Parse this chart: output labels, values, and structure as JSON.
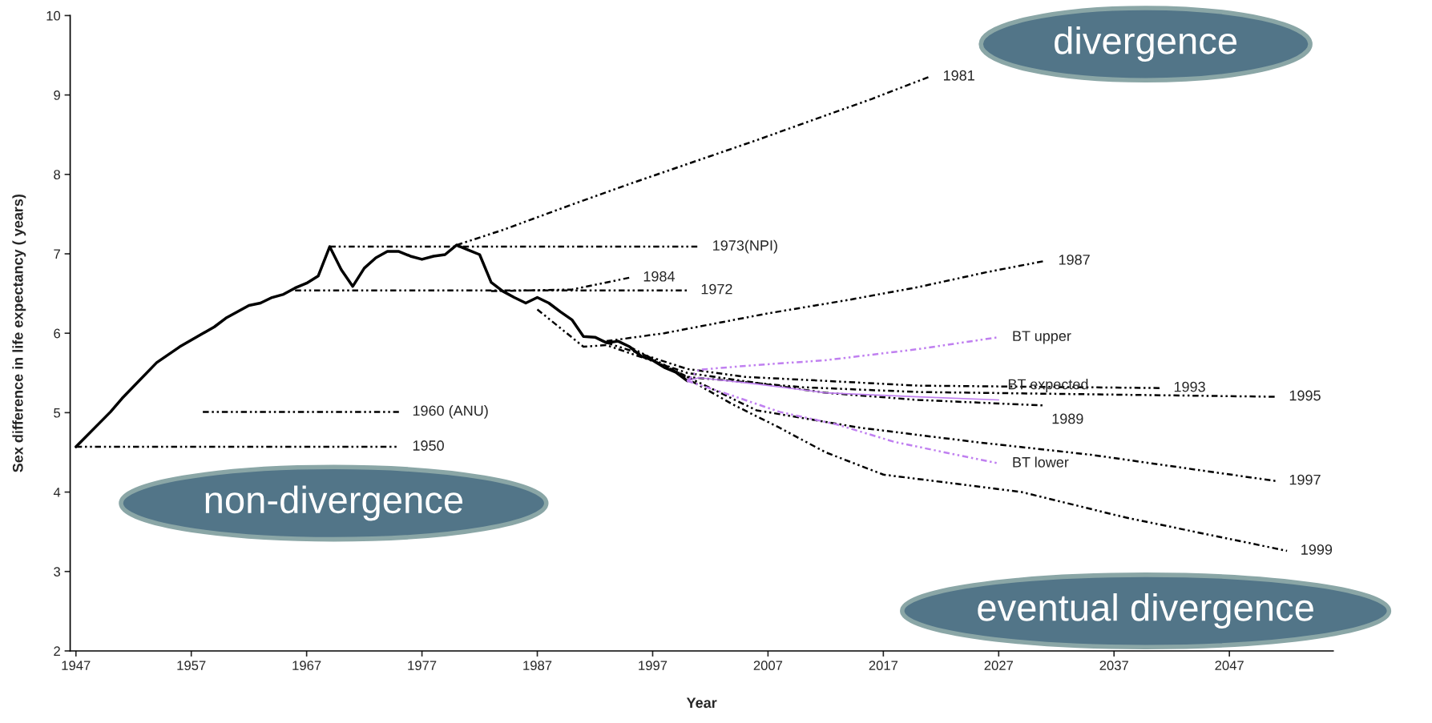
{
  "chart_data": {
    "type": "line",
    "xlabel": "Year",
    "ylabel": "Sex difference in life expectancy ( years)",
    "xlim": [
      1946.5,
      2056
    ],
    "xticks": [
      1947,
      1957,
      1967,
      1977,
      1987,
      1997,
      2007,
      2017,
      2027,
      2037,
      2047
    ],
    "ylim": [
      2,
      10
    ],
    "yticks": [
      2,
      3,
      4,
      5,
      6,
      7,
      8,
      9,
      10
    ],
    "grid": false,
    "legend": false,
    "marker": "none",
    "series": [
      {
        "color": "#000000",
        "line_style": "solid",
        "x": [
          1947,
          1950,
          1951,
          1954,
          1956,
          1959,
          1960,
          1962,
          1963,
          1964,
          1965,
          1966,
          1967,
          1968,
          1969,
          1970,
          1971,
          1972,
          1973,
          1974,
          1975,
          1976,
          1977,
          1978,
          1979,
          1980,
          1981,
          1982,
          1983,
          1984,
          1985,
          1986,
          1987,
          1988,
          1989,
          1990,
          1991,
          1992,
          1993,
          1994,
          1995,
          1996,
          1997,
          1998,
          1999,
          2000
        ],
        "values": [
          4.57,
          5.01,
          5.18,
          5.63,
          5.83,
          6.08,
          6.19,
          6.35,
          6.38,
          6.45,
          6.49,
          6.57,
          6.63,
          6.72,
          7.09,
          6.8,
          6.59,
          6.82,
          6.95,
          7.03,
          7.03,
          6.97,
          6.93,
          6.97,
          6.99,
          7.11,
          7.05,
          6.99,
          6.64,
          6.53,
          6.45,
          6.38,
          6.45,
          6.38,
          6.27,
          6.17,
          5.96,
          5.95,
          5.88,
          5.9,
          5.83,
          5.71,
          5.66,
          5.57,
          5.51,
          5.4
        ]
      },
      {
        "name": "1950",
        "color": "#000000",
        "line_style": "dashed",
        "x": [
          1947,
          1975
        ],
        "values": [
          4.57,
          4.57
        ]
      },
      {
        "name": "1960 (ANU)",
        "color": "#000000",
        "line_style": "dashed",
        "x": [
          1958,
          1975
        ],
        "values": [
          5.01,
          5.01
        ]
      },
      {
        "name": "1972",
        "color": "#000000",
        "line_style": "dashed",
        "x": [
          1966,
          2000
        ],
        "values": [
          6.54,
          6.54
        ]
      },
      {
        "name": "1973(NPI)",
        "color": "#000000",
        "line_style": "dashed",
        "x": [
          1969,
          2001
        ],
        "values": [
          7.09,
          7.09
        ]
      },
      {
        "name": "1984",
        "color": "#000000",
        "line_style": "dashed",
        "x": [
          1983,
          1990,
          1995
        ],
        "values": [
          6.53,
          6.55,
          6.7
        ]
      },
      {
        "name": "1981",
        "color": "#000000",
        "line_style": "dashed",
        "x": [
          1980,
          1984,
          1990,
          1995,
          2001,
          2006,
          2011,
          2016,
          2021
        ],
        "values": [
          7.11,
          7.3,
          7.62,
          7.88,
          8.18,
          8.43,
          8.69,
          8.95,
          9.23
        ]
      },
      {
        "name": "1987",
        "color": "#000000",
        "line_style": "dashed",
        "x": [
          1993,
          1998,
          2007,
          2014,
          2020,
          2026,
          2031
        ],
        "values": [
          5.9,
          6.0,
          6.25,
          6.42,
          6.58,
          6.77,
          6.91
        ]
      },
      {
        "name": "1989",
        "color": "#000000",
        "line_style": "dashed",
        "x": [
          1987,
          1991,
          1993,
          2000,
          2012,
          2020,
          2031
        ],
        "values": [
          6.3,
          5.83,
          5.85,
          5.5,
          5.25,
          5.16,
          5.09
        ]
      },
      {
        "name": "1993",
        "color": "#000000",
        "line_style": "dashed",
        "x": [
          1993,
          2000,
          2005,
          2012,
          2020,
          2041
        ],
        "values": [
          5.88,
          5.55,
          5.45,
          5.4,
          5.34,
          5.31
        ]
      },
      {
        "name": "1995",
        "color": "#000000",
        "line_style": "dashed",
        "x": [
          1995,
          2000,
          2010,
          2020,
          2051
        ],
        "values": [
          5.83,
          5.45,
          5.32,
          5.26,
          5.2
        ]
      },
      {
        "name": "1997",
        "color": "#000000",
        "line_style": "dashed",
        "x": [
          1997,
          2000,
          2006,
          2015,
          2025,
          2035,
          2051
        ],
        "values": [
          5.66,
          5.45,
          5.03,
          4.81,
          4.63,
          4.47,
          4.14
        ]
      },
      {
        "name": "1999",
        "color": "#000000",
        "line_style": "dashed",
        "x": [
          1999,
          2004,
          2008,
          2012,
          2017,
          2029,
          2038,
          2052
        ],
        "values": [
          5.51,
          5.1,
          4.81,
          4.5,
          4.22,
          4.0,
          3.68,
          3.26
        ]
      },
      {
        "name": "BT upper",
        "color": "#c080f0",
        "line_style": "dashed",
        "x": [
          2000,
          2001,
          2006,
          2012,
          2020,
          2027
        ],
        "values": [
          5.4,
          5.54,
          5.6,
          5.66,
          5.8,
          5.95
        ]
      },
      {
        "name": "BT expected",
        "color": "#c080f0",
        "line_style": "solid",
        "x": [
          2000,
          2001,
          2006,
          2012,
          2020,
          2027
        ],
        "values": [
          5.4,
          5.44,
          5.36,
          5.25,
          5.2,
          5.16
        ]
      },
      {
        "name": "BT lower",
        "color": "#c080f0",
        "line_style": "dashed",
        "x": [
          2000,
          2004,
          2008,
          2013,
          2018,
          2027
        ],
        "values": [
          5.4,
          5.21,
          5.01,
          4.85,
          4.63,
          4.36
        ]
      }
    ],
    "annotations": [
      "divergence",
      "non-divergence",
      "eventual divergence"
    ]
  }
}
